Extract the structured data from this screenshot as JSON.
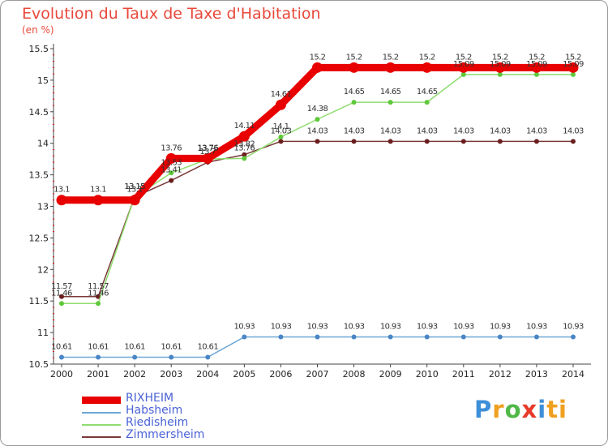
{
  "header": {
    "title": "Evolution du Taux de Taxe d'Habitation",
    "unit": "(en %)"
  },
  "logo": {
    "text": "Proxiti",
    "letters": [
      "P",
      "r",
      "o",
      "x",
      "i",
      "ti"
    ]
  },
  "chart_data": {
    "type": "line",
    "title": "Evolution du Taux de Taxe d'Habitation",
    "ylabel": "(en %)",
    "xlabel": "",
    "ylim": [
      10.5,
      15.5
    ],
    "y_ticks": [
      10.5,
      11,
      11.5,
      12,
      12.5,
      13,
      13.5,
      14,
      14.5,
      15,
      15.5
    ],
    "y_tick_labels": [
      "10.5",
      "11",
      "11.5",
      "12",
      "12.5",
      "13",
      "13.5",
      "14",
      "14.5",
      "15",
      "15.5"
    ],
    "x": [
      "2000",
      "2001",
      "2002",
      "2003",
      "2004",
      "2005",
      "2006",
      "2007",
      "2008",
      "2009",
      "2010",
      "2011",
      "2012",
      "2013",
      "2014"
    ],
    "grid": false,
    "legend_position": "bottom-left",
    "series": [
      {
        "name": "Zimmersheim",
        "color": "#7b3a3a",
        "values": [
          11.57,
          11.57,
          13.15,
          13.41,
          13.7,
          13.82,
          14.03,
          14.03,
          14.03,
          14.03,
          14.03,
          14.03,
          14.03,
          14.03,
          14.03
        ],
        "labels": [
          "11.57",
          "11.57",
          "13.15",
          "13.41",
          "13.7",
          "13.82",
          "14.03",
          "14.03",
          "14.03",
          "14.03",
          "14.03",
          "14.03",
          "14.03",
          "14.03",
          "14.03"
        ]
      },
      {
        "name": "Riedisheim",
        "color": "#8fdc6f",
        "values": [
          11.46,
          11.46,
          13.15,
          13.53,
          13.75,
          13.76,
          14.1,
          14.38,
          14.65,
          14.65,
          14.65,
          15.09,
          15.09,
          15.09,
          15.09
        ],
        "labels": [
          "11.46",
          "11.46",
          "13.15",
          "13.53",
          "13.75",
          "13.76",
          "14.1",
          "14.38",
          "14.65",
          "14.65",
          "14.65",
          "15.09",
          "15.09",
          "15.09",
          "15.09"
        ]
      },
      {
        "name": "Habsheim",
        "color": "#6fa8d6",
        "values": [
          10.61,
          10.61,
          10.61,
          10.61,
          10.61,
          10.93,
          10.93,
          10.93,
          10.93,
          10.93,
          10.93,
          10.93,
          10.93,
          10.93,
          10.93
        ],
        "labels": [
          "10.61",
          "10.61",
          "10.61",
          "10.61",
          "10.61",
          "10.93",
          "10.93",
          "10.93",
          "10.93",
          "10.93",
          "10.93",
          "10.93",
          "10.93",
          "10.93",
          "10.93"
        ]
      },
      {
        "name": "RIXHEIM",
        "color": "#e80000",
        "values": [
          13.1,
          13.1,
          13.1,
          13.76,
          13.76,
          14.11,
          14.61,
          15.2,
          15.2,
          15.2,
          15.2,
          15.2,
          15.2,
          15.2,
          15.2
        ],
        "labels": [
          "13.1",
          "13.1",
          "13.1",
          "13.76",
          "13.76",
          "14.11",
          "14.61",
          "15.2",
          "15.2",
          "15.2",
          "15.2",
          "15.2",
          "15.2",
          "15.2",
          "15.2"
        ]
      }
    ],
    "legend": [
      {
        "name": "RIXHEIM",
        "color": "#e80000"
      },
      {
        "name": "Habsheim",
        "color": "#6fa8d6"
      },
      {
        "name": "Riedisheim",
        "color": "#8fdc6f"
      },
      {
        "name": "Zimmersheim",
        "color": "#7b3a3a"
      }
    ]
  }
}
